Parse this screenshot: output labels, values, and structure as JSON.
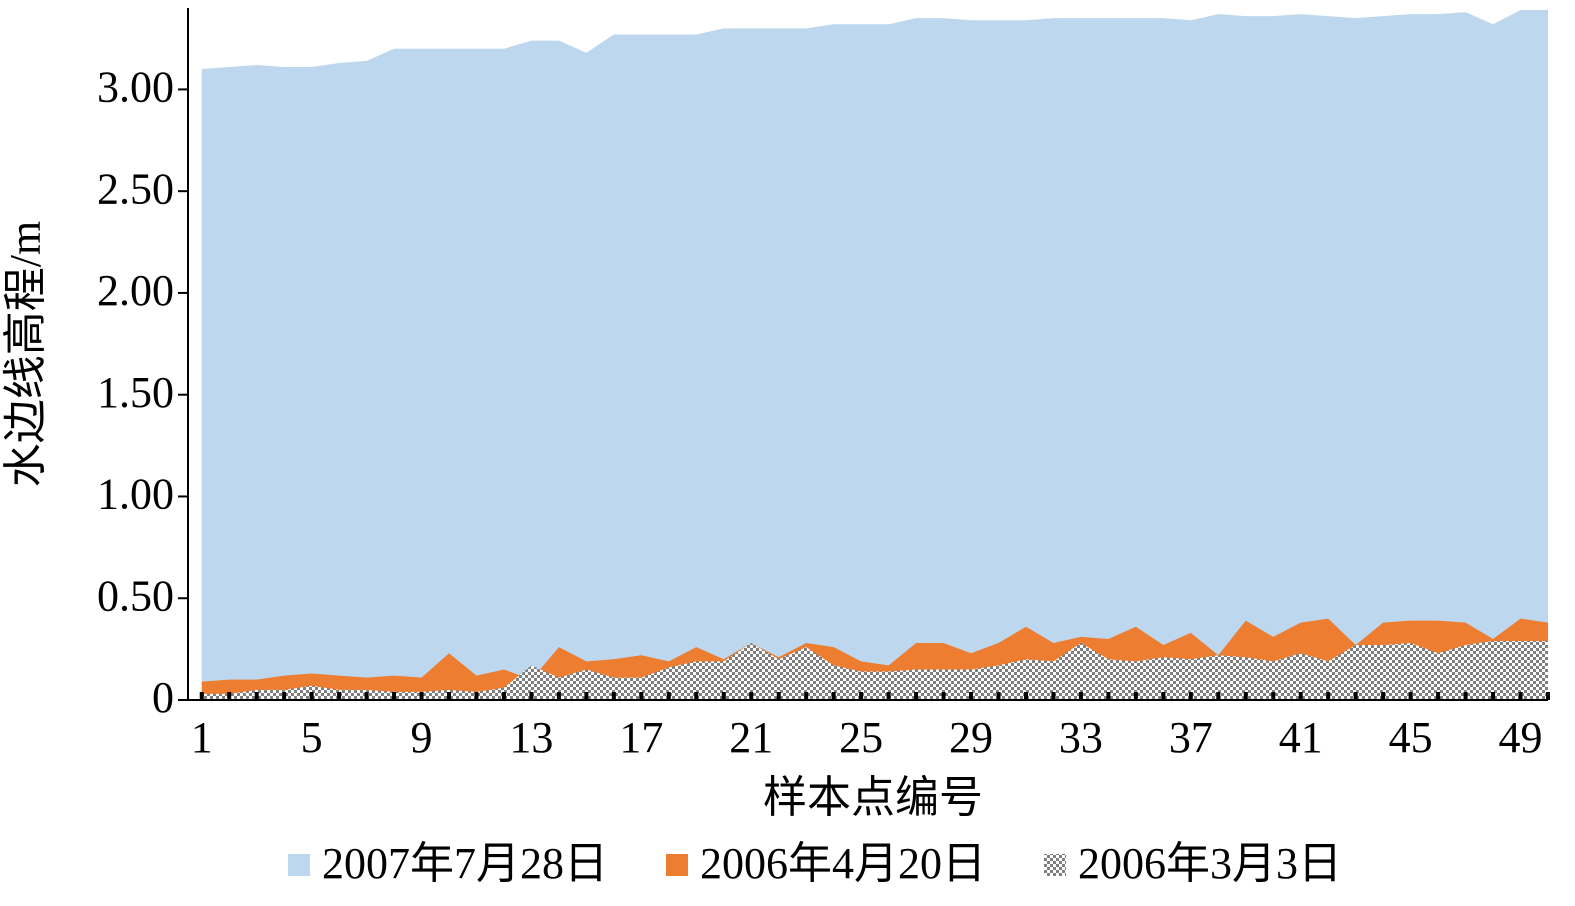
{
  "chart_data": {
    "type": "area",
    "y_label": "水边线高程/m",
    "x_label": "样本点编号",
    "x": [
      1,
      2,
      3,
      4,
      5,
      6,
      7,
      8,
      9,
      10,
      11,
      12,
      13,
      14,
      15,
      16,
      17,
      18,
      19,
      20,
      21,
      22,
      23,
      24,
      25,
      26,
      27,
      28,
      29,
      30,
      31,
      32,
      33,
      34,
      35,
      36,
      37,
      38,
      39,
      40,
      41,
      42,
      43,
      44,
      45,
      46,
      47,
      48,
      49,
      50
    ],
    "xlim": [
      0.5,
      50
    ],
    "xticks": [
      1,
      5,
      9,
      13,
      17,
      21,
      25,
      29,
      33,
      37,
      41,
      45,
      49
    ],
    "ylim": [
      0,
      3.4
    ],
    "yticks": [
      0,
      {
        "value": 0.5,
        "label": "0.50"
      },
      {
        "value": 1,
        "label": "1.00"
      },
      {
        "value": 1.5,
        "label": "1.50"
      },
      {
        "value": 2,
        "label": "2.00"
      },
      {
        "value": 2.5,
        "label": "2.50"
      },
      {
        "value": 3,
        "label": "3.00"
      }
    ],
    "legend": "bottom",
    "series": [
      {
        "name": "2007年7月28日",
        "color": "#bdd7ee",
        "values": [
          3.1,
          3.11,
          3.12,
          3.11,
          3.11,
          3.13,
          3.14,
          3.2,
          3.2,
          3.2,
          3.2,
          3.2,
          3.24,
          3.24,
          3.18,
          3.27,
          3.27,
          3.27,
          3.27,
          3.3,
          3.3,
          3.3,
          3.3,
          3.32,
          3.32,
          3.32,
          3.35,
          3.35,
          3.34,
          3.34,
          3.34,
          3.35,
          3.35,
          3.35,
          3.35,
          3.35,
          3.34,
          3.37,
          3.36,
          3.36,
          3.37,
          3.36,
          3.35,
          3.36,
          3.37,
          3.37,
          3.38,
          3.32,
          3.39,
          3.39
        ]
      },
      {
        "name": "2006年4月20日",
        "color": "#ed7d31",
        "values": [
          0.09,
          0.1,
          0.1,
          0.12,
          0.13,
          0.12,
          0.11,
          0.12,
          0.11,
          0.23,
          0.12,
          0.15,
          0.1,
          0.26,
          0.19,
          0.2,
          0.22,
          0.19,
          0.26,
          0.2,
          0.28,
          0.21,
          0.28,
          0.26,
          0.19,
          0.17,
          0.28,
          0.28,
          0.23,
          0.28,
          0.36,
          0.28,
          0.31,
          0.3,
          0.36,
          0.27,
          0.33,
          0.22,
          0.39,
          0.31,
          0.38,
          0.4,
          0.27,
          0.38,
          0.39,
          0.39,
          0.38,
          0.3,
          0.4,
          0.38
        ]
      },
      {
        "name": "2006年3月3日",
        "color": "#7f7f7f",
        "pattern": "checker",
        "values": [
          0.03,
          0.03,
          0.05,
          0.05,
          0.07,
          0.05,
          0.05,
          0.04,
          0.04,
          0.05,
          0.04,
          0.06,
          0.17,
          0.11,
          0.15,
          0.11,
          0.11,
          0.16,
          0.19,
          0.19,
          0.28,
          0.2,
          0.26,
          0.17,
          0.14,
          0.14,
          0.15,
          0.15,
          0.15,
          0.17,
          0.2,
          0.19,
          0.28,
          0.2,
          0.19,
          0.21,
          0.2,
          0.22,
          0.21,
          0.19,
          0.23,
          0.19,
          0.27,
          0.27,
          0.28,
          0.23,
          0.27,
          0.29,
          0.29,
          0.29
        ]
      }
    ]
  }
}
